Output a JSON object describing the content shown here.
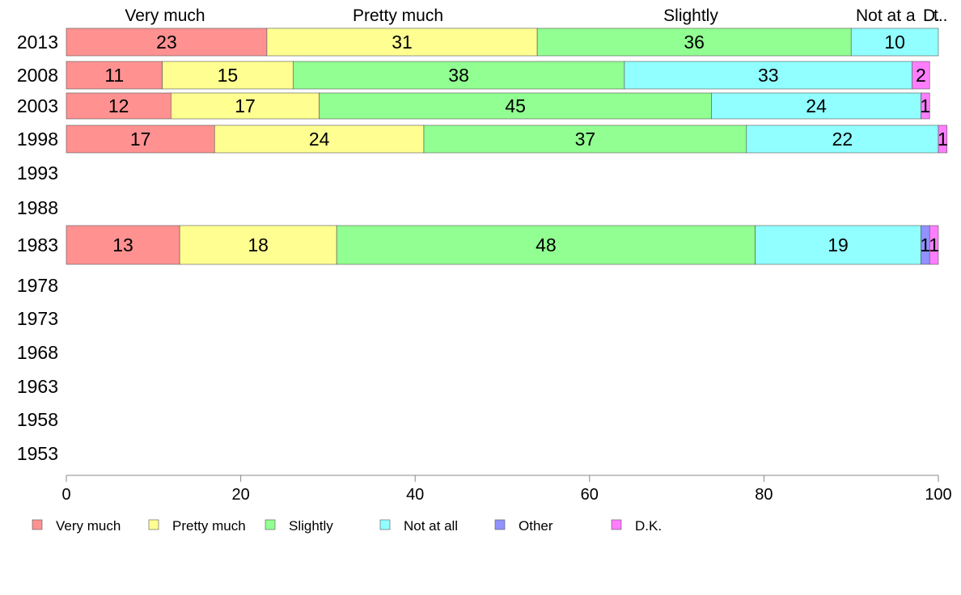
{
  "chart_data": {
    "type": "bar",
    "orientation": "horizontal",
    "stacked": true,
    "categories": [
      "2013",
      "2008",
      "2003",
      "1998",
      "1993",
      "1988",
      "1983",
      "1978",
      "1973",
      "1968",
      "1963",
      "1958",
      "1953"
    ],
    "series": [
      {
        "name": "Very much",
        "color": "#ff9191",
        "values": [
          23,
          11,
          12,
          17,
          null,
          null,
          13,
          null,
          null,
          null,
          null,
          null,
          null
        ]
      },
      {
        "name": "Pretty much",
        "color": "#ffff91",
        "values": [
          31,
          15,
          17,
          24,
          null,
          null,
          18,
          null,
          null,
          null,
          null,
          null,
          null
        ]
      },
      {
        "name": "Slightly",
        "color": "#91ff91",
        "values": [
          36,
          38,
          45,
          37,
          null,
          null,
          48,
          null,
          null,
          null,
          null,
          null,
          null
        ]
      },
      {
        "name": "Not at all",
        "color": "#91ffff",
        "values": [
          10,
          33,
          24,
          22,
          null,
          null,
          19,
          null,
          null,
          null,
          null,
          null,
          null
        ]
      },
      {
        "name": "Other",
        "color": "#9191ff",
        "values": [
          0,
          0,
          0,
          0,
          null,
          null,
          1,
          null,
          null,
          null,
          null,
          null,
          null
        ]
      },
      {
        "name": "D.K.",
        "color": "#ff7dff",
        "values": [
          0,
          2,
          1,
          1,
          null,
          null,
          1,
          null,
          null,
          null,
          null,
          null,
          null
        ]
      }
    ],
    "top_labels": [
      "Very much",
      "Pretty much",
      "Slightly",
      "Not at a",
      "D.",
      "t.."
    ],
    "x_ticks": [
      0,
      20,
      40,
      60,
      80,
      100
    ],
    "xlim": [
      0,
      100
    ],
    "xlabel": "",
    "ylabel": "",
    "title": "",
    "grid": false,
    "legend_position": "bottom",
    "legend": [
      "Very much",
      "Pretty much",
      "Slightly",
      "Not at all",
      "Other",
      "D.K."
    ]
  }
}
